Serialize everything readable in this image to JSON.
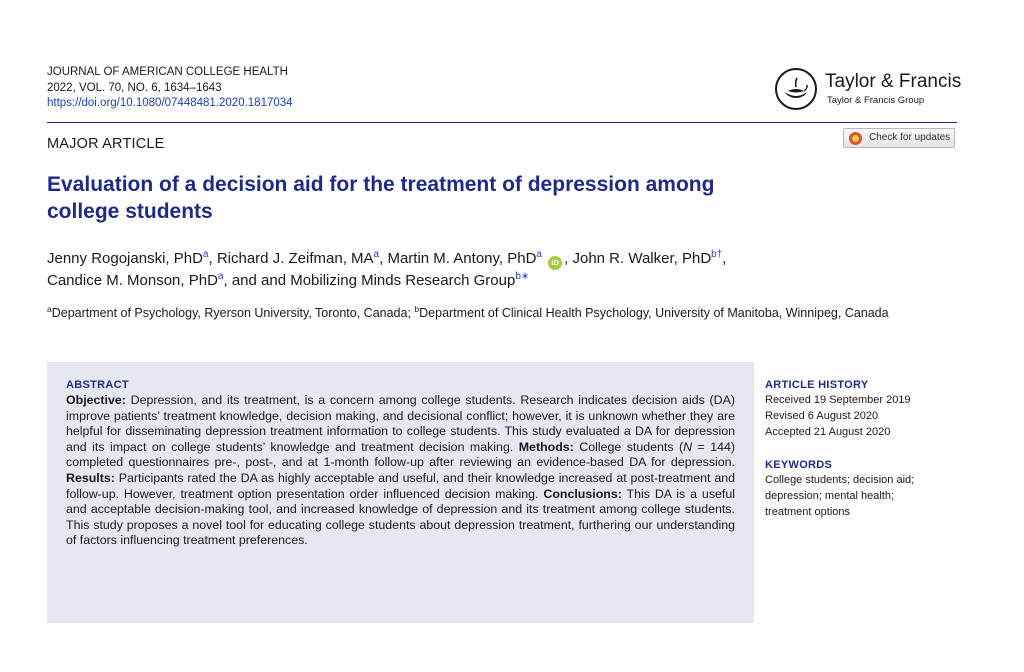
{
  "journal": {
    "name": "JOURNAL OF AMERICAN COLLEGE HEALTH",
    "citation": "2022, VOL. 70, NO. 6, 1634–1643",
    "doi": "https://doi.org/10.1080/07448481.2020.1817034"
  },
  "publisher": {
    "name": "Taylor & Francis",
    "group": "Taylor & Francis Group"
  },
  "check_updates_label": "Check for updates",
  "section": "MAJOR ARTICLE",
  "title_line1": "Evaluation of a decision aid for the treatment of depression among",
  "title_line2": "college students",
  "authors": [
    {
      "name": "Jenny Rogojanski, PhD",
      "sup": "a"
    },
    {
      "name": "Richard J. Zeifman, MA",
      "sup": "a"
    },
    {
      "name": "Martin M. Antony, PhD",
      "sup": "a"
    },
    {
      "name": "John R. Walker, PhD",
      "sup": "b†"
    },
    {
      "name": "Candice M. Monson, PhD",
      "sup": "a"
    },
    {
      "name": "and and Mobilizing Minds Research Group",
      "sup": "b∗"
    }
  ],
  "orcid_label": "iD",
  "affiliations": {
    "a_sup": "a",
    "a_text": "Department of Psychology, Ryerson University, Toronto, Canada; ",
    "b_sup": "b",
    "b_text": "Department of Clinical Health Psychology, University of Manitoba, Winnipeg, Canada"
  },
  "abstract": {
    "heading": "ABSTRACT",
    "objective_label": "Objective:",
    "objective": " Depression, and its treatment, is a concern among college students. Research indicates decision aids (DA) improve patients’ treatment knowledge, decision making, and decisional con­flict; however, it is unknown whether they are helpful for disseminating depression treatment information to college students. This study evaluated a DA for depression and its impact on col­lege students’ knowledge and treatment decision making. ",
    "methods_label": "Methods:",
    "methods_a": " College students (",
    "methods_n": "N",
    "methods_b": " = 144) completed questionnaires pre-, post-, and at 1-month follow-up after reviewing an evidence-based DA for depression. ",
    "results_label": "Results:",
    "results": " Participants rated the DA as highly acceptable and useful, and their knowledge increased at post-treatment and follow-up. However, treatment option presentation order influenced decision making. ",
    "conclusions_label": "Conclusions:",
    "conclusions": " This DA is a useful and acceptable decision-mak­ing tool, and increased knowledge of depression and its treatment among college students. This study proposes a novel tool for educating college students about depression treatment, furthering our understanding of factors influencing treatment preferences."
  },
  "article_history": {
    "heading": "ARTICLE HISTORY",
    "received": "Received 19 September 2019",
    "revised": "Revised 6 August 2020",
    "accepted": "Accepted 21 August 2020"
  },
  "keywords": {
    "heading": "KEYWORDS",
    "text": "College students; decision aid; depression; mental health; treatment options"
  }
}
